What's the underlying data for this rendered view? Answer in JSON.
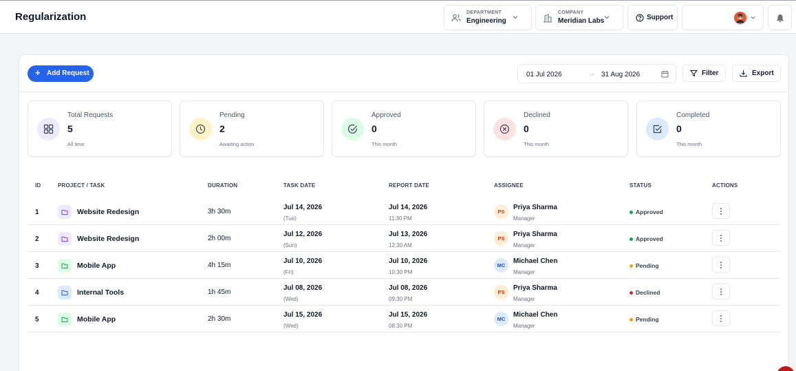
{
  "header": {
    "title": "Regularization",
    "department": {
      "label": "DEPARTMENT",
      "value": "Engineering"
    },
    "company": {
      "label": "COMPANY",
      "value": "Meridian Labs"
    },
    "support_label": "Support"
  },
  "toolbar": {
    "add_label": "Add Request",
    "date_from": "01 Jul 2026",
    "date_arrow": "→",
    "date_to": "31 Aug 2026",
    "filter_label": "Filter",
    "export_label": "Export"
  },
  "stats": [
    {
      "label": "Total Requests",
      "value": "5",
      "sub": "All time",
      "icon": "grid-icon",
      "bg": "#ede9fe",
      "fg": "#374151"
    },
    {
      "label": "Pending",
      "value": "2",
      "sub": "Awaiting action",
      "icon": "clock-icon",
      "bg": "#fef3c7",
      "fg": "#374151"
    },
    {
      "label": "Approved",
      "value": "0",
      "sub": "This month",
      "icon": "check-circle-icon",
      "bg": "#dcfce7",
      "fg": "#374151"
    },
    {
      "label": "Declined",
      "value": "0",
      "sub": "This month",
      "icon": "x-circle-icon",
      "bg": "#fee2e2",
      "fg": "#374151"
    },
    {
      "label": "Completed",
      "value": "0",
      "sub": "This month",
      "icon": "check-square-icon",
      "bg": "#dbeafe",
      "fg": "#374151"
    }
  ],
  "table": {
    "headers": [
      "ID",
      "PROJECT / TASK",
      "DURATION",
      "TASK DATE",
      "REPORT DATE",
      "ASSIGNEE",
      "STATUS",
      "ACTIONS"
    ],
    "rows": [
      {
        "id": "1",
        "project": "Website Redesign",
        "folder": "purple",
        "duration": "3h 30m",
        "task_date": "Jul 14, 2026",
        "task_day": "(Tue)",
        "report_date": "Jul 14, 2026",
        "report_time": "11:30 PM",
        "initials": "PS",
        "name": "Priya Sharma",
        "role": "Manager",
        "status": "Approved"
      },
      {
        "id": "2",
        "project": "Website Redesign",
        "folder": "purple",
        "duration": "2h 00m",
        "task_date": "Jul 12, 2026",
        "task_day": "(Sun)",
        "report_date": "Jul 13, 2026",
        "report_time": "12:30 AM",
        "initials": "PS",
        "name": "Priya Sharma",
        "role": "Manager",
        "status": "Approved"
      },
      {
        "id": "3",
        "project": "Mobile App",
        "folder": "green",
        "duration": "4h 15m",
        "task_date": "Jul 10, 2026",
        "task_day": "(Fri)",
        "report_date": "Jul 10, 2026",
        "report_time": "10:30 PM",
        "initials": "MC",
        "name": "Michael Chen",
        "role": "Manager",
        "status": "Pending"
      },
      {
        "id": "4",
        "project": "Internal Tools",
        "folder": "blue",
        "duration": "1h 45m",
        "task_date": "Jul 08, 2026",
        "task_day": "(Wed)",
        "report_date": "Jul 08, 2026",
        "report_time": "09:30 PM",
        "initials": "PS",
        "name": "Priya Sharma",
        "role": "Manager",
        "status": "Declined"
      },
      {
        "id": "5",
        "project": "Mobile App",
        "folder": "green",
        "duration": "2h 30m",
        "task_date": "Jul 15, 2026",
        "task_day": "(Wed)",
        "report_date": "Jul 15, 2026",
        "report_time": "08:30 PM",
        "initials": "MC",
        "name": "Michael Chen",
        "role": "Manager",
        "status": "Pending"
      }
    ]
  },
  "colors": {
    "accent": "#2563eb",
    "status": {
      "Approved": "#16a34a",
      "Pending": "#f59e0b",
      "Declined": "#dc2626"
    },
    "folder": {
      "purple": {
        "bg": "#ede9fe",
        "fg": "#7c3aed"
      },
      "green": {
        "bg": "#dcfce7",
        "fg": "#16a34a"
      },
      "blue": {
        "bg": "#dbeafe",
        "fg": "#2563eb"
      }
    },
    "avatar": {
      "PS": {
        "bg": "#ffedd5",
        "fg": "#c2410c"
      },
      "MC": {
        "bg": "#dbeafe",
        "fg": "#1d4ed8"
      }
    }
  }
}
